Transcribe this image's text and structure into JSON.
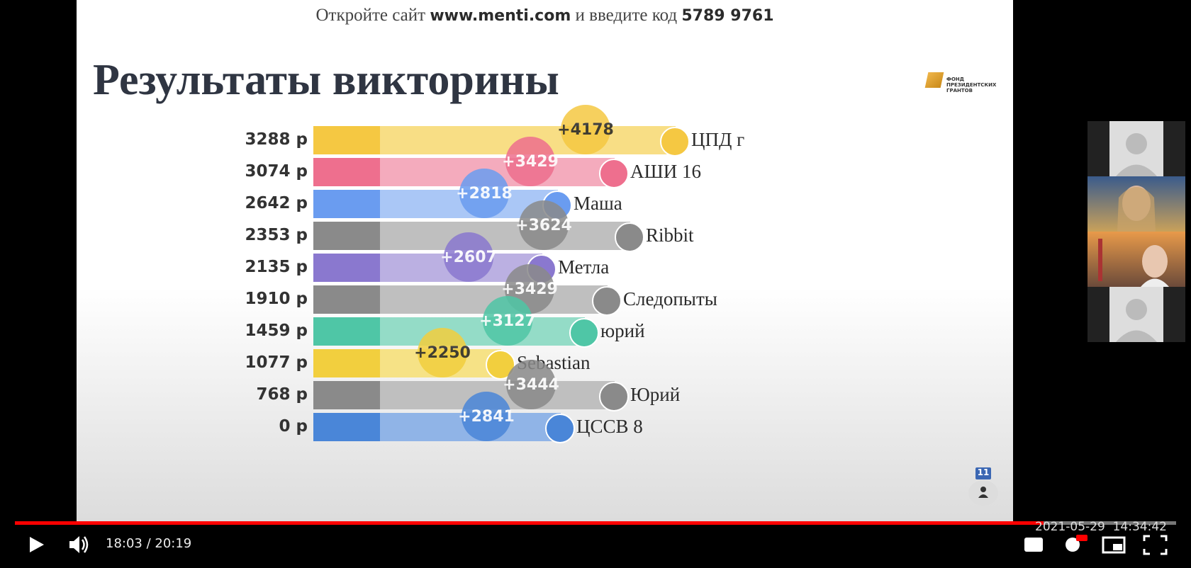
{
  "slide": {
    "header": {
      "prefix": "Откройте сайт",
      "site": "www.menti.com",
      "middle": "и введите код",
      "code": "5789 9761"
    },
    "title": "Результаты викторины",
    "logo": [
      "ФОНД",
      "ПРЕЗИДЕНТСКИХ",
      "ГРАНТОВ"
    ],
    "leaderboard": [
      {
        "score": "3288 р",
        "name": "ЦПД г",
        "bonus": "+4178"
      },
      {
        "score": "3074 р",
        "name": "АШИ 16",
        "bonus": "+3429"
      },
      {
        "score": "2642 р",
        "name": "Маша",
        "bonus": "+2818"
      },
      {
        "score": "2353 р",
        "name": "Ribbit",
        "bonus": "+3624"
      },
      {
        "score": "2135 р",
        "name": "Метла",
        "bonus": "+2607"
      },
      {
        "score": "1910 р",
        "name": "Следопыты",
        "bonus": "+3429"
      },
      {
        "score": "1459 р",
        "name": "юрий",
        "bonus": "+3127"
      },
      {
        "score": "1077 р",
        "name": "Sebastian",
        "bonus": "+2250"
      },
      {
        "score": "768 р",
        "name": "Юрий",
        "bonus": "+3444"
      },
      {
        "score": "0 р",
        "name": "ЦССВ 8",
        "bonus": "+2841"
      }
    ],
    "participants": "11"
  },
  "player": {
    "time": "18:03 / 20:19",
    "timestamp": "2021-05-29  14:34:42"
  }
}
